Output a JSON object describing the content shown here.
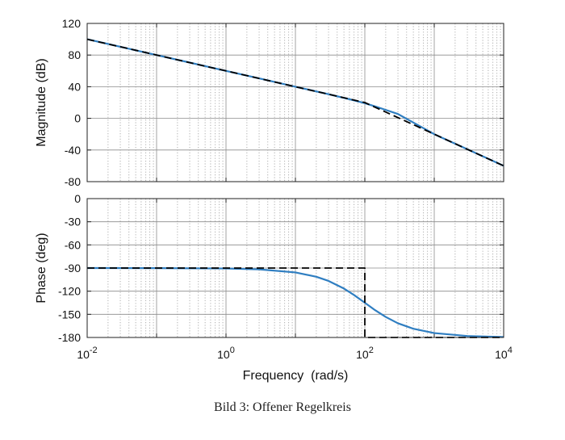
{
  "caption": "Bild 3: Offener Regelkreis",
  "chart_data": [
    {
      "type": "line",
      "xscale": "log",
      "xlim": [
        0.01,
        10000
      ],
      "ylim": [
        -80,
        120
      ],
      "yticks": [
        120,
        80,
        40,
        0,
        -40,
        -80
      ],
      "ylabel": "Magnitude (dB)",
      "grid": true,
      "series": [
        {
          "color": "#2f7ec1",
          "style": "solid",
          "x": [
            0.01,
            0.03,
            0.1,
            0.3,
            1,
            3,
            10,
            30,
            60,
            100,
            150,
            200,
            300,
            1000,
            3000,
            10000
          ],
          "y": [
            100,
            90.5,
            80,
            70.5,
            60,
            50.5,
            40,
            30.5,
            24.2,
            19.2,
            14.3,
            10.7,
            5.5,
            -20,
            -39,
            -60
          ]
        },
        {
          "color": "#000000",
          "style": "dashed",
          "x": [
            0.01,
            100,
            10000
          ],
          "y": [
            100,
            20,
            -60
          ]
        }
      ]
    },
    {
      "type": "line",
      "xscale": "log",
      "xlim": [
        0.01,
        10000
      ],
      "ylim": [
        -180,
        0
      ],
      "yticks": [
        0,
        -30,
        -60,
        -90,
        -120,
        -150,
        -180
      ],
      "ylabel": "Phase (deg)",
      "xlabel": "Frequency  (rad/s)",
      "xticks": [
        {
          "base": "10",
          "exp": "-2",
          "value": 0.01
        },
        {
          "base": "10",
          "exp": "0",
          "value": 1
        },
        {
          "base": "10",
          "exp": "2",
          "value": 100
        },
        {
          "base": "10",
          "exp": "4",
          "value": 10000
        }
      ],
      "grid": true,
      "series": [
        {
          "color": "#2f7ec1",
          "style": "solid",
          "x": [
            0.01,
            0.1,
            1,
            3,
            10,
            20,
            30,
            50,
            70,
            100,
            140,
            200,
            300,
            500,
            1000,
            3000,
            10000
          ],
          "y": [
            -90,
            -90.1,
            -90.6,
            -91.7,
            -95.7,
            -101.3,
            -106.7,
            -116.6,
            -125,
            -135,
            -144.5,
            -153.4,
            -161.6,
            -168.7,
            -174.3,
            -178.1,
            -179.4
          ]
        },
        {
          "color": "#000000",
          "style": "dashed",
          "x": [
            0.01,
            100,
            100,
            10000
          ],
          "y": [
            -90,
            -90,
            -180,
            -180
          ]
        }
      ]
    }
  ]
}
